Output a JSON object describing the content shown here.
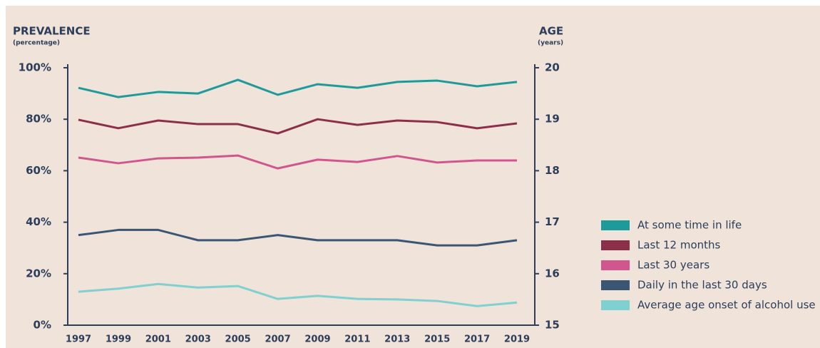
{
  "chart_data": {
    "type": "line",
    "y_title": "PREVALENCE",
    "y_subtitle": "(percentage)",
    "y2_title": "AGE",
    "y2_subtitle": "(years)",
    "categories": [
      "1997",
      "1999",
      "2001",
      "2003",
      "2005",
      "2007",
      "2009",
      "2011",
      "2013",
      "2015",
      "2017",
      "2019"
    ],
    "ylim": [
      0,
      100
    ],
    "yticks": [
      {
        "value": 0,
        "label": "0%"
      },
      {
        "value": 20,
        "label": "20%"
      },
      {
        "value": 40,
        "label": "40%"
      },
      {
        "value": 60,
        "label": "60%"
      },
      {
        "value": 80,
        "label": "80%"
      },
      {
        "value": 100,
        "label": "100%"
      }
    ],
    "y2lim": [
      15,
      20
    ],
    "y2ticks": [
      15,
      16,
      17,
      18,
      19,
      20
    ],
    "legend": "right",
    "series": [
      {
        "name": "At some time in life",
        "color": "#1f9a9a",
        "values": [
          92.2,
          88.6,
          90.6,
          90,
          95.3,
          89.5,
          93.6,
          92.2,
          94.5,
          95,
          92.8,
          94.5
        ]
      },
      {
        "name": "Last 12 months",
        "color": "#8b2f4a",
        "values": [
          79.8,
          76.5,
          79.5,
          78.1,
          78.1,
          74.5,
          80,
          77.8,
          79.5,
          78.9,
          76.5,
          78.4
        ]
      },
      {
        "name": "Last 30 years",
        "color": "#d1568f",
        "values": [
          65.1,
          62.9,
          64.8,
          65.1,
          65.9,
          60.9,
          64.3,
          63.4,
          65.7,
          63.2,
          64,
          64
        ]
      },
      {
        "name": "Daily in the last 30 days",
        "color": "#3a5674",
        "values": [
          35,
          37,
          37,
          33,
          33,
          35,
          33,
          33,
          33,
          31,
          31,
          33
        ]
      },
      {
        "name": "Average age onset of alcohol use",
        "color": "#80d0d0",
        "axis": "y2",
        "values": [
          15.65,
          15.71,
          15.8,
          15.73,
          15.76,
          15.51,
          15.57,
          15.51,
          15.5,
          15.47,
          15.37,
          15.44
        ]
      }
    ]
  }
}
